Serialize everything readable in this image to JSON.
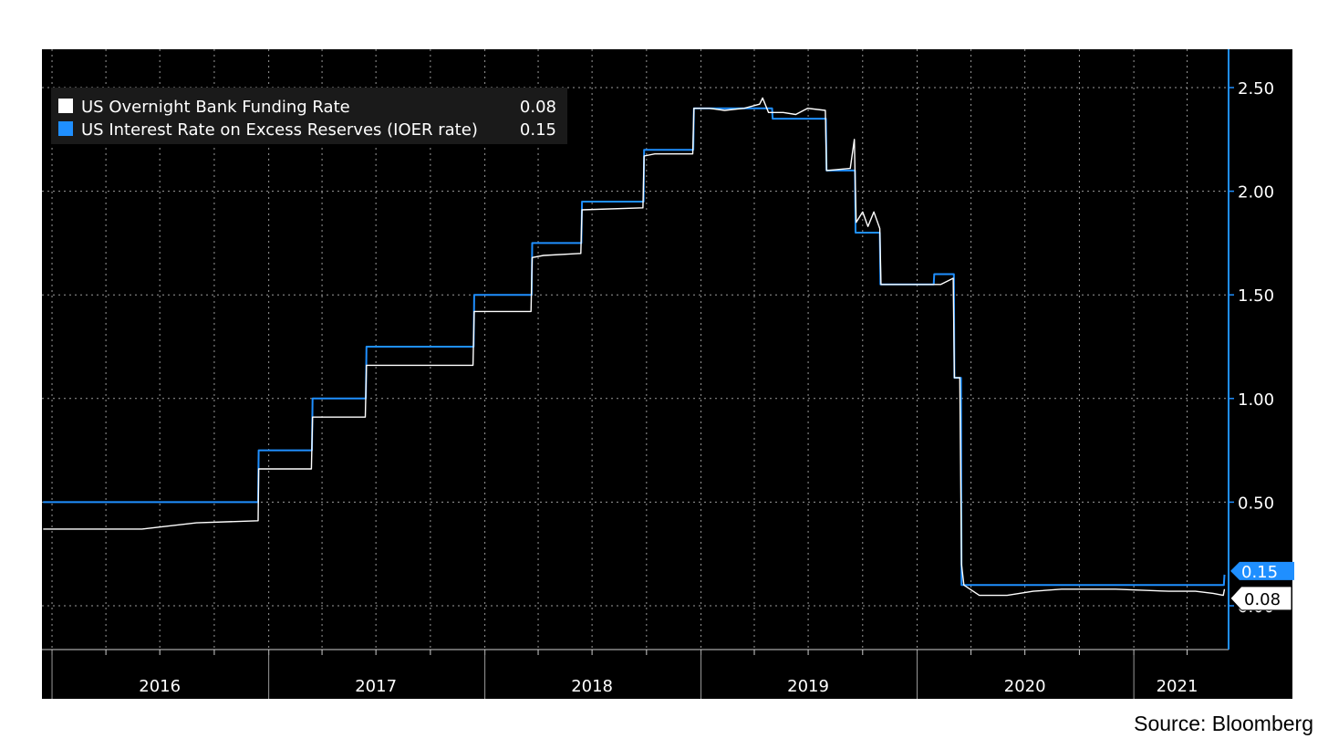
{
  "chart_data": {
    "type": "line",
    "title": "",
    "xlabel": "",
    "ylabel": "",
    "x_range": [
      "2015-12-15",
      "2021-06-10"
    ],
    "ylim": [
      -0.2,
      2.7
    ],
    "y_ticks": [
      0.0,
      0.5,
      1.0,
      1.5,
      2.0,
      2.5
    ],
    "y_tick_labels": [
      "0.00",
      "0.50",
      "1.00",
      "1.50",
      "2.00",
      "2.50"
    ],
    "x_year_labels": [
      {
        "label": "2016",
        "date": "2016-07-01"
      },
      {
        "label": "2017",
        "date": "2017-07-01"
      },
      {
        "label": "2018",
        "date": "2018-07-01"
      },
      {
        "label": "2019",
        "date": "2019-07-01"
      },
      {
        "label": "2020",
        "date": "2020-07-01"
      },
      {
        "label": "2021",
        "date": "2021-03-15"
      }
    ],
    "legend": {
      "position": "top-left"
    },
    "grid": true,
    "background": "#000000",
    "series": [
      {
        "name": "US Overnight Bank Funding Rate",
        "legend_value": "0.08",
        "color": "#ffffff",
        "points": [
          [
            "2015-12-17",
            0.37
          ],
          [
            "2016-03-01",
            0.37
          ],
          [
            "2016-06-01",
            0.37
          ],
          [
            "2016-09-01",
            0.4
          ],
          [
            "2016-12-14",
            0.41
          ],
          [
            "2016-12-15",
            0.66
          ],
          [
            "2017-03-14",
            0.66
          ],
          [
            "2017-03-16",
            0.91
          ],
          [
            "2017-06-13",
            0.91
          ],
          [
            "2017-06-15",
            1.16
          ],
          [
            "2017-12-12",
            1.16
          ],
          [
            "2017-12-14",
            1.42
          ],
          [
            "2018-03-20",
            1.42
          ],
          [
            "2018-03-22",
            1.68
          ],
          [
            "2018-04-10",
            1.69
          ],
          [
            "2018-06-12",
            1.7
          ],
          [
            "2018-06-14",
            1.91
          ],
          [
            "2018-09-25",
            1.92
          ],
          [
            "2018-09-27",
            2.17
          ],
          [
            "2018-10-15",
            2.18
          ],
          [
            "2018-12-18",
            2.18
          ],
          [
            "2018-12-20",
            2.4
          ],
          [
            "2019-01-15",
            2.4
          ],
          [
            "2019-02-10",
            2.39
          ],
          [
            "2019-03-15",
            2.4
          ],
          [
            "2019-04-10",
            2.42
          ],
          [
            "2019-04-15",
            2.45
          ],
          [
            "2019-04-25",
            2.38
          ],
          [
            "2019-05-20",
            2.38
          ],
          [
            "2019-06-10",
            2.37
          ],
          [
            "2019-06-30",
            2.4
          ],
          [
            "2019-07-30",
            2.39
          ],
          [
            "2019-08-01",
            2.1
          ],
          [
            "2019-09-10",
            2.11
          ],
          [
            "2019-09-17",
            2.25
          ],
          [
            "2019-09-18",
            2.1
          ],
          [
            "2019-09-20",
            1.85
          ],
          [
            "2019-10-01",
            1.9
          ],
          [
            "2019-10-10",
            1.83
          ],
          [
            "2019-10-20",
            1.9
          ],
          [
            "2019-10-30",
            1.82
          ],
          [
            "2019-11-01",
            1.55
          ],
          [
            "2019-12-01",
            1.55
          ],
          [
            "2020-02-10",
            1.55
          ],
          [
            "2020-03-02",
            1.58
          ],
          [
            "2020-03-04",
            1.1
          ],
          [
            "2020-03-13",
            1.1
          ],
          [
            "2020-03-16",
            0.2
          ],
          [
            "2020-03-20",
            0.1
          ],
          [
            "2020-04-15",
            0.05
          ],
          [
            "2020-06-01",
            0.05
          ],
          [
            "2020-07-15",
            0.07
          ],
          [
            "2020-09-01",
            0.08
          ],
          [
            "2020-12-01",
            0.08
          ],
          [
            "2021-03-01",
            0.07
          ],
          [
            "2021-04-15",
            0.07
          ],
          [
            "2021-05-15",
            0.06
          ],
          [
            "2021-06-01",
            0.05
          ],
          [
            "2021-06-03",
            0.08
          ]
        ]
      },
      {
        "name": "US Interest Rate on Excess Reserves (IOER rate)",
        "legend_value": "0.15",
        "color": "#1f8fff",
        "points": [
          [
            "2015-12-17",
            0.5
          ],
          [
            "2016-12-14",
            0.5
          ],
          [
            "2016-12-15",
            0.75
          ],
          [
            "2017-03-15",
            0.75
          ],
          [
            "2017-03-16",
            1.0
          ],
          [
            "2017-06-14",
            1.0
          ],
          [
            "2017-06-15",
            1.25
          ],
          [
            "2017-12-13",
            1.25
          ],
          [
            "2017-12-14",
            1.5
          ],
          [
            "2018-03-21",
            1.5
          ],
          [
            "2018-03-22",
            1.75
          ],
          [
            "2018-06-13",
            1.75
          ],
          [
            "2018-06-14",
            1.95
          ],
          [
            "2018-09-26",
            1.95
          ],
          [
            "2018-09-27",
            2.2
          ],
          [
            "2018-12-19",
            2.2
          ],
          [
            "2018-12-20",
            2.4
          ],
          [
            "2019-05-01",
            2.4
          ],
          [
            "2019-05-02",
            2.35
          ],
          [
            "2019-07-31",
            2.35
          ],
          [
            "2019-08-01",
            2.1
          ],
          [
            "2019-09-18",
            2.1
          ],
          [
            "2019-09-19",
            1.8
          ],
          [
            "2019-10-30",
            1.8
          ],
          [
            "2019-10-31",
            1.55
          ],
          [
            "2020-01-29",
            1.55
          ],
          [
            "2020-01-30",
            1.6
          ],
          [
            "2020-03-03",
            1.6
          ],
          [
            "2020-03-04",
            1.1
          ],
          [
            "2020-03-15",
            1.1
          ],
          [
            "2020-03-16",
            0.1
          ],
          [
            "2021-06-02",
            0.1
          ],
          [
            "2021-06-03",
            0.15
          ]
        ]
      }
    ],
    "last_value_labels": [
      {
        "value": 0.15,
        "label": "0.15",
        "color": "#1f8fff"
      },
      {
        "value": 0.08,
        "label": "0.08",
        "color": "#ffffff"
      }
    ]
  },
  "source_note": "Source: Bloomberg"
}
